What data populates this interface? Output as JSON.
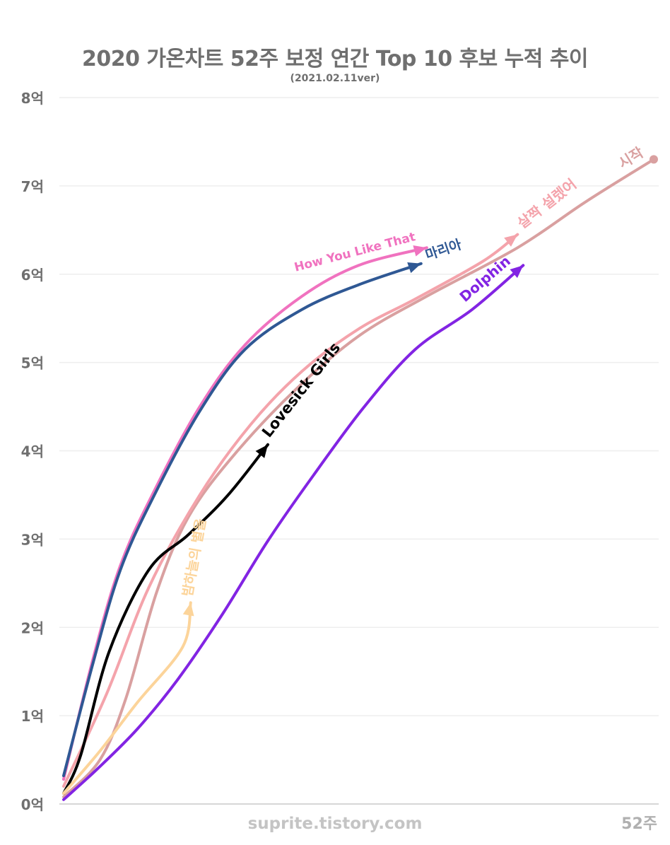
{
  "chart_data": {
    "type": "line",
    "title": "2020 가온차트 52주 보정 연간 Top 10 후보 누적 추이",
    "subtitle": "(2021.02.11ver)",
    "x_label_end": "52주",
    "watermark": "suprite.tistory.com",
    "y_ticks": [
      "0억",
      "1억",
      "2억",
      "3억",
      "4억",
      "5억",
      "6억",
      "7억",
      "8억"
    ],
    "ylim": [
      0,
      8
    ],
    "grid": true,
    "series": [
      {
        "name": "시작",
        "color": "#d9a0a0",
        "end_style": "dot",
        "points": [
          [
            0,
            0.08
          ],
          [
            3.2,
            0.5
          ],
          [
            5.5,
            1.2
          ],
          [
            8.2,
            2.4
          ],
          [
            11.0,
            3.25
          ],
          [
            15.0,
            3.95
          ],
          [
            20.5,
            4.7
          ],
          [
            26.0,
            5.3
          ],
          [
            32.0,
            5.75
          ],
          [
            40.0,
            6.3
          ],
          [
            46.0,
            6.82
          ],
          [
            52.0,
            7.3
          ]
        ]
      },
      {
        "name": "살짝 설렜어",
        "color": "#f4a3ab",
        "end_style": "arrow",
        "points": [
          [
            0,
            0.2
          ],
          [
            3.8,
            1.25
          ],
          [
            7.5,
            2.45
          ],
          [
            12.0,
            3.5
          ],
          [
            16.5,
            4.3
          ],
          [
            21.0,
            4.9
          ],
          [
            26.0,
            5.38
          ],
          [
            31.0,
            5.72
          ],
          [
            37.0,
            6.15
          ],
          [
            40.0,
            6.45
          ]
        ]
      },
      {
        "name": "How You Like That",
        "color": "#f072bf",
        "end_style": "arrow",
        "points": [
          [
            0,
            0.28
          ],
          [
            2.6,
            1.65
          ],
          [
            5.0,
            2.7
          ],
          [
            8.0,
            3.55
          ],
          [
            12.0,
            4.5
          ],
          [
            16.0,
            5.2
          ],
          [
            21.0,
            5.75
          ],
          [
            26.0,
            6.1
          ],
          [
            32.0,
            6.3
          ]
        ]
      },
      {
        "name": "마리아",
        "color": "#2f5894",
        "end_style": "arrow",
        "points": [
          [
            0,
            0.32
          ],
          [
            2.6,
            1.6
          ],
          [
            5.0,
            2.65
          ],
          [
            8.0,
            3.5
          ],
          [
            12.0,
            4.45
          ],
          [
            16.0,
            5.15
          ],
          [
            21.0,
            5.6
          ],
          [
            26.0,
            5.88
          ],
          [
            31.5,
            6.12
          ]
        ]
      },
      {
        "name": "Lovesick Girls",
        "color": "#000000",
        "end_style": "arrow",
        "points": [
          [
            0,
            0.12
          ],
          [
            1.5,
            0.55
          ],
          [
            4.0,
            1.72
          ],
          [
            7.5,
            2.65
          ],
          [
            11.0,
            3.05
          ],
          [
            14.5,
            3.5
          ],
          [
            18.0,
            4.07
          ]
        ]
      },
      {
        "name": "밤하늘의 별을",
        "color": "#fcd49a",
        "end_style": "arrow",
        "points": [
          [
            0,
            0.12
          ],
          [
            3.2,
            0.6
          ],
          [
            6.5,
            1.15
          ],
          [
            10.5,
            1.78
          ],
          [
            11.2,
            2.28
          ]
        ]
      },
      {
        "name": "Dolphin",
        "color": "#8224e3",
        "end_style": "arrow",
        "points": [
          [
            0,
            0.05
          ],
          [
            3.0,
            0.4
          ],
          [
            6.5,
            0.85
          ],
          [
            10.0,
            1.4
          ],
          [
            14.0,
            2.15
          ],
          [
            18.0,
            2.98
          ],
          [
            22.0,
            3.72
          ],
          [
            26.5,
            4.5
          ],
          [
            31.0,
            5.15
          ],
          [
            36.0,
            5.6
          ],
          [
            40.5,
            6.1
          ]
        ]
      }
    ]
  }
}
